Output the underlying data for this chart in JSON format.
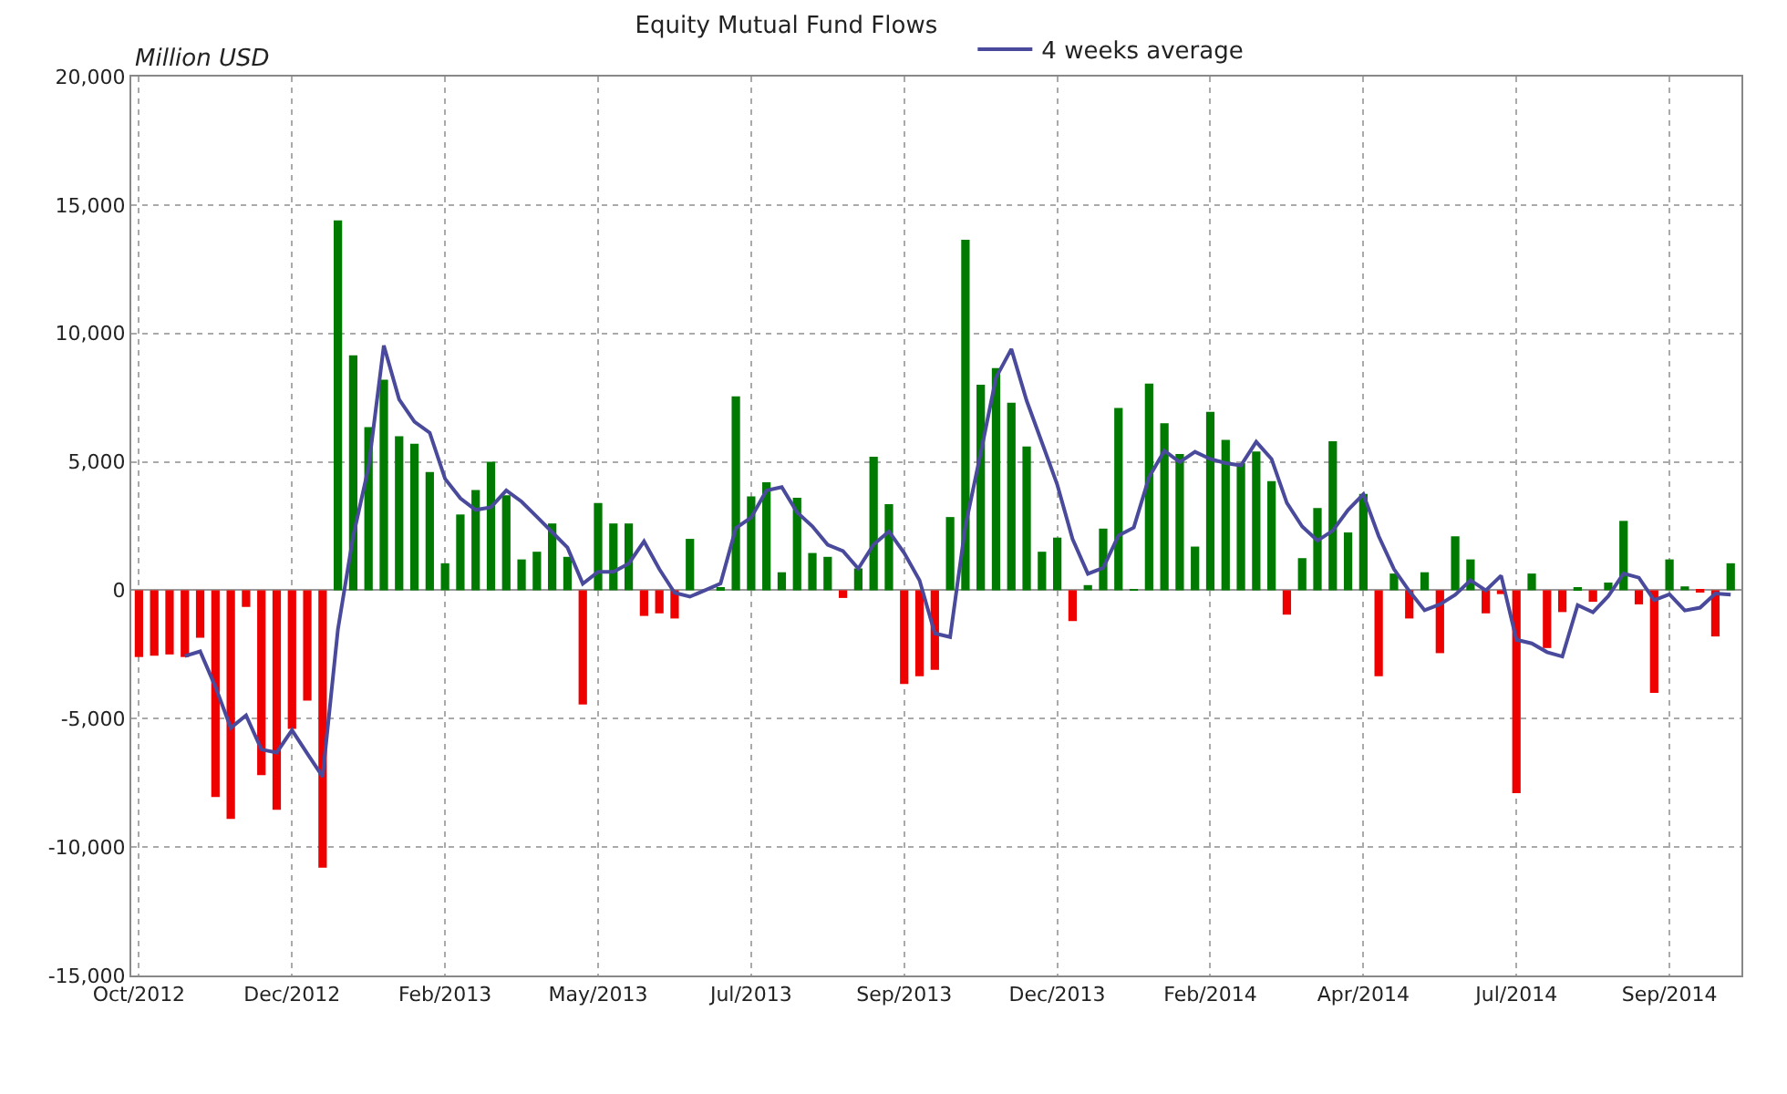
{
  "chart_data": {
    "type": "bar",
    "title": "Equity Mutual Fund Flows",
    "ylabel": "Million USD",
    "categories": [
      "Oct/2012",
      null,
      null,
      null,
      null,
      null,
      null,
      null,
      null,
      null,
      "Dec/2012",
      null,
      null,
      null,
      null,
      null,
      null,
      null,
      null,
      null,
      "Feb/2013",
      null,
      null,
      null,
      null,
      null,
      null,
      null,
      null,
      null,
      "May/2013",
      null,
      null,
      null,
      null,
      null,
      null,
      null,
      null,
      null,
      "Jul/2013",
      null,
      null,
      null,
      null,
      null,
      null,
      null,
      null,
      null,
      "Sep/2013",
      null,
      null,
      null,
      null,
      null,
      null,
      null,
      null,
      null,
      "Dec/2013",
      null,
      null,
      null,
      null,
      null,
      null,
      null,
      null,
      null,
      "Feb/2014",
      null,
      null,
      null,
      null,
      null,
      null,
      null,
      null,
      null,
      "Apr/2014",
      null,
      null,
      null,
      null,
      null,
      null,
      null,
      null,
      null,
      "Jul/2014",
      null,
      null,
      null,
      null,
      null,
      null,
      null,
      null,
      null,
      "Sep/2014",
      null,
      null,
      null,
      null
    ],
    "series": [
      {
        "values": [
          -2600,
          -2550,
          -2500,
          -2600,
          -1850,
          -8050,
          -8900,
          -650,
          -7200,
          -8550,
          -5400,
          -4300,
          -10800,
          14400,
          9150,
          6350,
          8200,
          6000,
          5700,
          4600,
          1050,
          2950,
          3900,
          5000,
          3700,
          1200,
          1500,
          2600,
          1300,
          -4450,
          3400,
          2600,
          2600,
          -1000,
          -900,
          -1100,
          2000,
          0,
          100,
          7550,
          3650,
          4200,
          700,
          3600,
          1450,
          1300,
          -300,
          850,
          5200,
          3350,
          -3650,
          -3350,
          -3100,
          2850,
          13650,
          8000,
          8650,
          7300,
          5600,
          1500,
          2050,
          -1200,
          200,
          2400,
          7100,
          50,
          8050,
          6500,
          5300,
          1700,
          6950,
          5850,
          4950,
          5400,
          4250,
          -950,
          1250,
          3200,
          5800,
          2250,
          3750,
          -3350,
          650,
          -1100,
          700,
          -2450,
          2100,
          1200,
          -900,
          -150,
          -7900,
          650,
          -2250,
          -850,
          100,
          -450,
          300,
          2700,
          -550,
          -4000,
          1200,
          150,
          -50,
          -1800,
          1050
        ],
        "colors": [
          "#ee0000",
          "#ee0000",
          "#ee0000",
          "#ee0000",
          "#ee0000",
          "#ee0000",
          "#ee0000",
          "#ee0000",
          "#ee0000",
          "#ee0000",
          "#ee0000",
          "#ee0000",
          "#ee0000",
          "#007a00",
          "#007a00",
          "#007a00",
          "#007a00",
          "#007a00",
          "#007a00",
          "#007a00",
          "#007a00",
          "#007a00",
          "#007a00",
          "#007a00",
          "#007a00",
          "#007a00",
          "#007a00",
          "#007a00",
          "#007a00",
          "#ee0000",
          "#007a00",
          "#007a00",
          "#007a00",
          "#ee0000",
          "#ee0000",
          "#ee0000",
          "#007a00",
          "#007a00",
          "#007a00",
          "#007a00",
          "#007a00",
          "#007a00",
          "#007a00",
          "#007a00",
          "#007a00",
          "#007a00",
          "#ee0000",
          "#007a00",
          "#007a00",
          "#007a00",
          "#ee0000",
          "#ee0000",
          "#ee0000",
          "#007a00",
          "#007a00",
          "#007a00",
          "#007a00",
          "#007a00",
          "#007a00",
          "#007a00",
          "#007a00",
          "#ee0000",
          "#007a00",
          "#007a00",
          "#007a00",
          "#007a00",
          "#007a00",
          "#007a00",
          "#007a00",
          "#007a00",
          "#007a00",
          "#007a00",
          "#007a00",
          "#007a00",
          "#007a00",
          "#ee0000",
          "#007a00",
          "#007a00",
          "#007a00",
          "#007a00",
          "#007a00",
          "#ee0000",
          "#007a00",
          "#ee0000",
          "#007a00",
          "#ee0000",
          "#007a00",
          "#007a00",
          "#ee0000",
          "#ee0000",
          "#ee0000",
          "#007a00",
          "#ee0000",
          "#ee0000",
          "#007a00",
          "#ee0000",
          "#007a00",
          "#007a00",
          "#ee0000",
          "#ee0000",
          "#007a00",
          "#007a00",
          "#ee0000",
          "#ee0000",
          "#007a00"
        ]
      },
      {
        "type": "line",
        "name": "4 weeks average",
        "color": "#4a4a9c",
        "values": [
          null,
          null,
          null,
          -2560,
          -2380,
          -3760,
          -5360,
          -4870,
          -6200,
          -6320,
          -5450,
          -6360,
          -7260,
          -1530,
          2110,
          4780,
          9530,
          7430,
          6560,
          6130,
          4340,
          3580,
          3130,
          3230,
          3890,
          3450,
          2860,
          2260,
          1660,
          250,
          720,
          720,
          1040,
          1900,
          820,
          -100,
          -250,
          0,
          260,
          2420,
          2830,
          3880,
          4020,
          3030,
          2490,
          1770,
          1530,
          840,
          1780,
          2290,
          1450,
          390,
          -1680,
          -1820,
          2510,
          5350,
          8280,
          9390,
          7380,
          5750,
          4110,
          1990,
          640,
          870,
          2130,
          2440,
          4410,
          5430,
          4990,
          5390,
          5110,
          4950,
          4860,
          5780,
          5110,
          3400,
          2480,
          1930,
          2320,
          3130,
          3740,
          2110,
          820,
          -30,
          -780,
          -550,
          -180,
          390,
          -10,
          570,
          -1930,
          -2070,
          -2410,
          -2580,
          -580,
          -860,
          -230,
          650,
          490,
          -390,
          -160,
          -790,
          -680,
          -130,
          -170
        ]
      }
    ],
    "ylim": [
      -15000,
      20000
    ],
    "yticks": [
      {
        "value": -15000,
        "label": "-15,000"
      },
      {
        "value": -10000,
        "label": "-10,000"
      },
      {
        "value": -5000,
        "label": "-5,000"
      },
      0,
      {
        "value": 5000,
        "label": "5,000"
      },
      {
        "value": 10000,
        "label": "10,000"
      },
      {
        "value": 15000,
        "label": "15,000"
      },
      {
        "value": 20000,
        "label": "20,000"
      }
    ],
    "grid": true,
    "legend": "top",
    "marker": "none",
    "line_style": "solid"
  }
}
